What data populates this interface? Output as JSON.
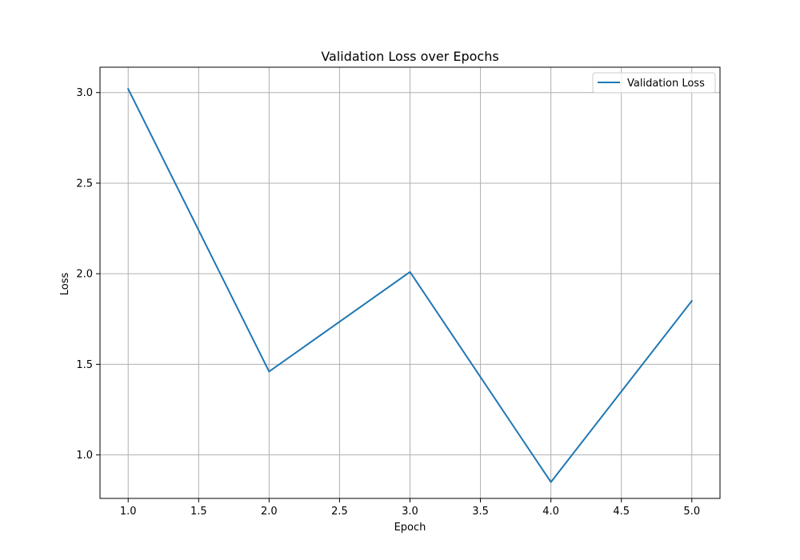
{
  "chart_data": {
    "type": "line",
    "title": "Validation Loss over Epochs",
    "xlabel": "Epoch",
    "ylabel": "Loss",
    "x": [
      1,
      2,
      3,
      4,
      5
    ],
    "series": [
      {
        "name": "Validation Loss",
        "color": "#1f77b4",
        "values": [
          3.02,
          1.46,
          2.01,
          0.85,
          1.85
        ]
      }
    ],
    "xlim": [
      0.8,
      5.2
    ],
    "ylim": [
      0.76,
      3.14
    ],
    "xticks": [
      "1.0",
      "1.5",
      "2.0",
      "2.5",
      "3.0",
      "3.5",
      "4.0",
      "4.5",
      "5.0"
    ],
    "yticks": [
      "1.0",
      "1.5",
      "2.0",
      "2.5",
      "3.0"
    ],
    "grid": true,
    "legend_position": "top-right"
  }
}
